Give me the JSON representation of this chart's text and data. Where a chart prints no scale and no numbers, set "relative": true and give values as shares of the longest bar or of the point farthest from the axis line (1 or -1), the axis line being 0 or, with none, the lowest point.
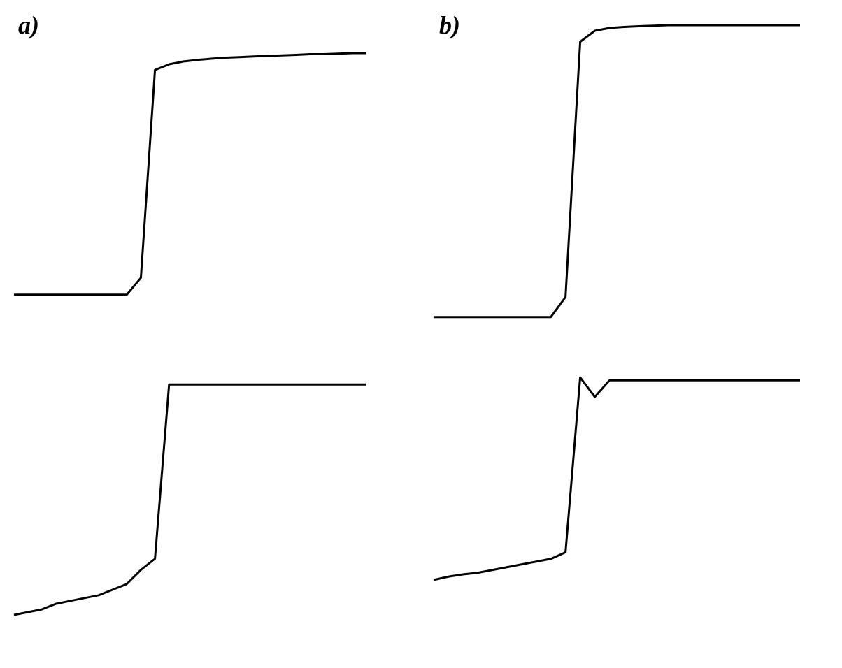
{
  "chart_data": [
    {
      "type": "line",
      "title": "a)",
      "relative": true,
      "categories": [
        null,
        null,
        null,
        null,
        null,
        null,
        null,
        null,
        null,
        null,
        null,
        null,
        null,
        null,
        null,
        null,
        null,
        null,
        null,
        null,
        null,
        null,
        null,
        null,
        null,
        null
      ],
      "series": [
        {
          "color": "#000000",
          "values": [
            0.57,
            0.57,
            0.57,
            0.57,
            0.57,
            0.57,
            0.57,
            0.57,
            0.57,
            0.6,
            0.97,
            0.98,
            0.985,
            0.988,
            0.99,
            0.992,
            0.993,
            0.994,
            0.995,
            0.996,
            0.997,
            0.998,
            0.998,
            0.999,
            1,
            1
          ]
        },
        {
          "color": "#000000",
          "values": [
            0,
            0.005,
            0.01,
            0.02,
            0.025,
            0.03,
            0.035,
            0.045,
            0.055,
            0.08,
            0.1,
            0.41,
            0.41,
            0.41,
            0.41,
            0.41,
            0.41,
            0.41,
            0.41,
            0.41,
            0.41,
            0.41,
            0.41,
            0.41,
            0.41,
            0.41
          ]
        }
      ]
    },
    {
      "type": "line",
      "title": "b)",
      "relative": true,
      "categories": [
        null,
        null,
        null,
        null,
        null,
        null,
        null,
        null,
        null,
        null,
        null,
        null,
        null,
        null,
        null,
        null,
        null,
        null,
        null,
        null,
        null,
        null,
        null,
        null,
        null,
        null
      ],
      "series": [
        {
          "color": "#000000",
          "values": [
            0.474,
            0.474,
            0.474,
            0.474,
            0.474,
            0.474,
            0.474,
            0.474,
            0.474,
            0.51,
            0.97,
            0.99,
            0.995,
            0.997,
            0.998,
            0.999,
            1,
            1,
            1,
            1,
            1,
            1,
            1,
            1,
            1,
            1
          ]
        },
        {
          "color": "#000000",
          "values": [
            0,
            0.006,
            0.01,
            0.013,
            0.018,
            0.023,
            0.028,
            0.033,
            0.038,
            0.05,
            0.365,
            0.33,
            0.36,
            0.36,
            0.36,
            0.36,
            0.36,
            0.36,
            0.36,
            0.36,
            0.36,
            0.36,
            0.36,
            0.36,
            0.36,
            0.36
          ]
        }
      ]
    }
  ]
}
